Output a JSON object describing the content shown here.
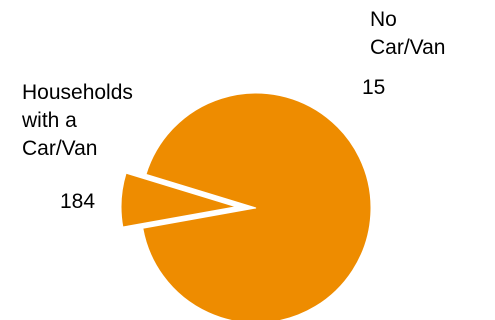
{
  "chart_data": {
    "type": "pie",
    "title": "",
    "exploded": true,
    "color": "#EE8C00",
    "slices": [
      {
        "label": [
          "Households",
          "with a",
          "Car/Van"
        ],
        "value": 184
      },
      {
        "label": [
          "No",
          "Car/Van"
        ],
        "value": 15
      }
    ]
  }
}
